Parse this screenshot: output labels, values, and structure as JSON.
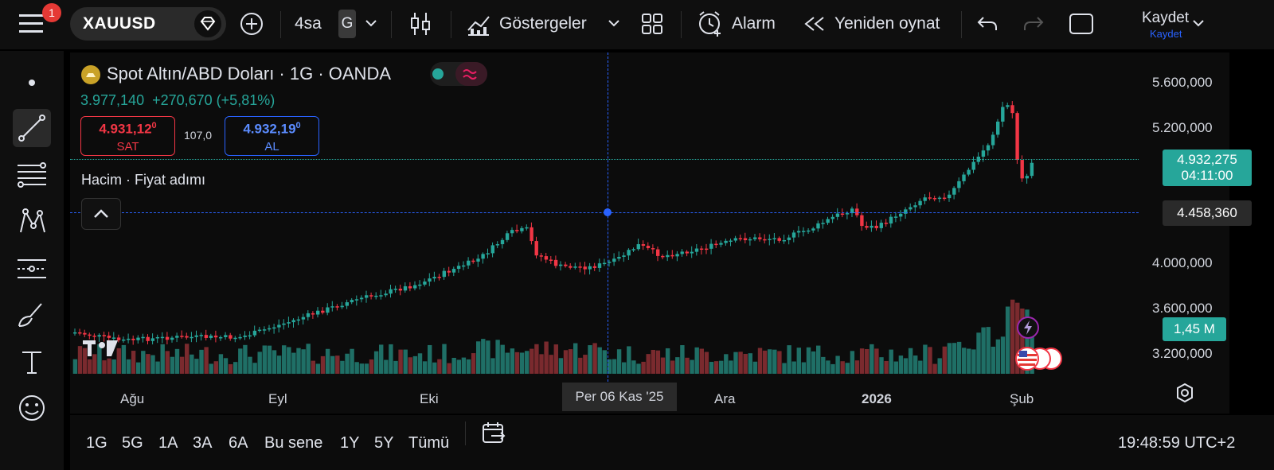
{
  "header": {
    "menu_badge": "1",
    "symbol": "XAUUSD",
    "interval": "4sa",
    "chart_style_letter": "G",
    "indicators_label": "Göstergeler",
    "alarm_label": "Alarm",
    "replay_label": "Yeniden oynat",
    "save_label": "Kaydet",
    "save_sublabel": "Kaydet"
  },
  "legend": {
    "title": "Spot Altın/ABD Doları · 1G · OANDA",
    "last_price": "3.977,140",
    "change": "+270,670 (+5,81%)",
    "sell_price_main": "4.931,12",
    "sell_price_sup": "0",
    "sell_label": "SAT",
    "spread": "107,0",
    "buy_price_main": "4.932,19",
    "buy_price_sup": "0",
    "buy_label": "AL",
    "volume_label": "Hacim · Fiyat adımı"
  },
  "price_axis": {
    "ticks": [
      "5.600,000",
      "5.200,000",
      "4.000,000",
      "3.600,000",
      "3.200,000"
    ],
    "current_price": "4.932,275",
    "countdown": "04:11:00",
    "crosshair_price": "4.458,360",
    "volume_value": "1,45 M"
  },
  "time_axis": {
    "labels": [
      "Ağu",
      "Eyl",
      "Eki",
      "Ara",
      "2026",
      "Şub"
    ],
    "crosshair_date": "Per 06 Kas '25"
  },
  "bottom": {
    "ranges": [
      "1G",
      "5G",
      "1A",
      "3A",
      "6A",
      "Bu sene",
      "1Y",
      "5Y",
      "Tümü"
    ],
    "clock": "19:48:59 UTC+2"
  },
  "colors": {
    "up": "#26a69a",
    "down": "#f23645",
    "volume_up": "#1f6f66",
    "volume_down": "#7a2a2e",
    "crosshair": "#2962ff"
  }
}
